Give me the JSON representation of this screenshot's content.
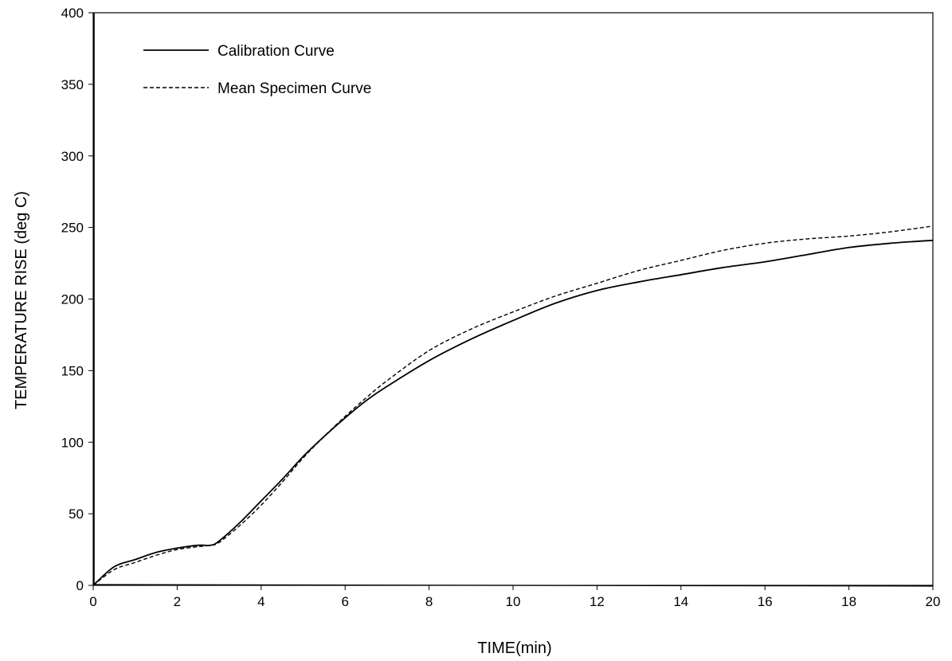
{
  "chart_data": {
    "type": "line",
    "title": "",
    "xlabel": "TIME(min)",
    "ylabel": "TEMPERATURE RISE (deg C)",
    "xlim": [
      0,
      20
    ],
    "ylim": [
      0,
      400
    ],
    "xticks": [
      0,
      2,
      4,
      6,
      8,
      10,
      12,
      14,
      16,
      18,
      20
    ],
    "yticks": [
      0,
      50,
      100,
      150,
      200,
      250,
      300,
      350,
      400
    ],
    "grid": false,
    "legend_position": "top-left",
    "series": [
      {
        "name": "Calibration Curve",
        "style": "solid",
        "color": "#000000",
        "x": [
          0,
          0.5,
          1.0,
          1.5,
          2.0,
          2.5,
          2.8,
          3.0,
          3.5,
          4.0,
          4.5,
          5.0,
          5.5,
          6.0,
          6.5,
          7.0,
          8.0,
          9.0,
          10.0,
          11.0,
          12.0,
          13.0,
          14.0,
          15.0,
          16.0,
          17.0,
          18.0,
          19.0,
          20.0
        ],
        "y": [
          0,
          13,
          18,
          23,
          26,
          28,
          28,
          31,
          44,
          59,
          74,
          90,
          104,
          117,
          129,
          139,
          157,
          172,
          185,
          197,
          206,
          212,
          217,
          222,
          226,
          231,
          236,
          239,
          241
        ]
      },
      {
        "name": "Mean Specimen Curve",
        "style": "dashed",
        "color": "#000000",
        "x": [
          0,
          0.5,
          1.0,
          1.5,
          2.0,
          2.5,
          2.8,
          3.0,
          3.5,
          4.0,
          4.5,
          5.0,
          5.5,
          6.0,
          6.5,
          7.0,
          8.0,
          9.0,
          10.0,
          11.0,
          12.0,
          13.0,
          14.0,
          15.0,
          16.0,
          17.0,
          18.0,
          19.0,
          20.0
        ],
        "y": [
          0,
          11,
          16,
          21,
          25,
          27,
          28,
          30,
          42,
          56,
          72,
          89,
          104,
          118,
          131,
          143,
          164,
          179,
          191,
          202,
          211,
          220,
          227,
          234,
          239,
          242,
          244,
          247,
          251
        ]
      }
    ]
  }
}
